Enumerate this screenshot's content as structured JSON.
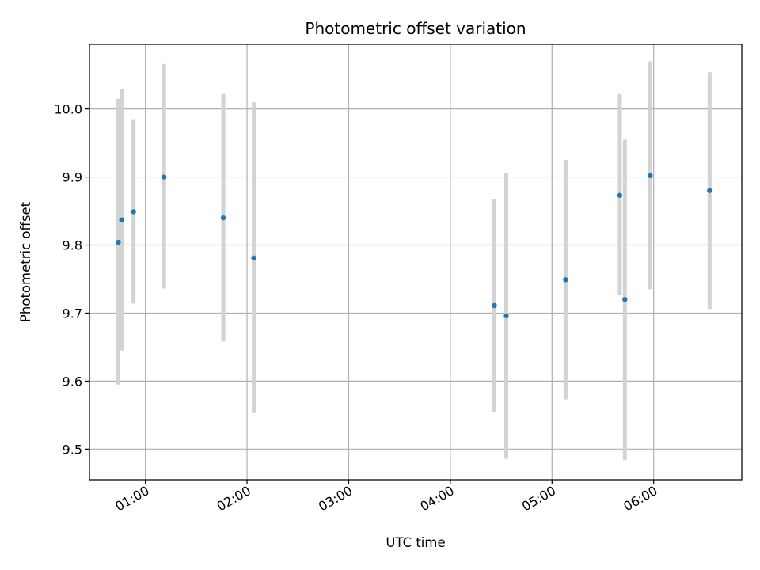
{
  "chart_data": {
    "type": "scatter",
    "title": "Photometric offset variation",
    "xlabel": "UTC time",
    "ylabel": "Photometric offset",
    "x_axis": "time",
    "xlim": [
      "00:27",
      "06:52"
    ],
    "ylim": [
      9.455,
      10.095
    ],
    "x_ticks": [
      "01:00",
      "02:00",
      "03:00",
      "04:00",
      "05:00",
      "06:00"
    ],
    "y_ticks": [
      9.5,
      9.6,
      9.7,
      9.8,
      9.9,
      10.0
    ],
    "grid": true,
    "marker_color": "#1f77b4",
    "errorbar_color": "#d3d3d3",
    "points": [
      {
        "x": "00:44",
        "y": 9.804,
        "yerr_low": 9.595,
        "yerr_high": 10.015
      },
      {
        "x": "00:46",
        "y": 9.837,
        "yerr_low": 9.645,
        "yerr_high": 10.03
      },
      {
        "x": "00:53",
        "y": 9.849,
        "yerr_low": 9.714,
        "yerr_high": 9.985
      },
      {
        "x": "01:11",
        "y": 9.9,
        "yerr_low": 9.736,
        "yerr_high": 10.066
      },
      {
        "x": "01:46",
        "y": 9.84,
        "yerr_low": 9.658,
        "yerr_high": 10.022
      },
      {
        "x": "02:04",
        "y": 9.781,
        "yerr_low": 9.553,
        "yerr_high": 10.01
      },
      {
        "x": "04:26",
        "y": 9.711,
        "yerr_low": 9.555,
        "yerr_high": 9.868
      },
      {
        "x": "04:33",
        "y": 9.696,
        "yerr_low": 9.486,
        "yerr_high": 9.906
      },
      {
        "x": "05:08",
        "y": 9.749,
        "yerr_low": 9.573,
        "yerr_high": 9.925
      },
      {
        "x": "05:40",
        "y": 9.873,
        "yerr_low": 9.726,
        "yerr_high": 10.022
      },
      {
        "x": "05:43",
        "y": 9.72,
        "yerr_low": 9.484,
        "yerr_high": 9.955
      },
      {
        "x": "05:58",
        "y": 9.902,
        "yerr_low": 9.735,
        "yerr_high": 10.07
      },
      {
        "x": "06:33",
        "y": 9.88,
        "yerr_low": 9.706,
        "yerr_high": 10.054
      }
    ]
  }
}
